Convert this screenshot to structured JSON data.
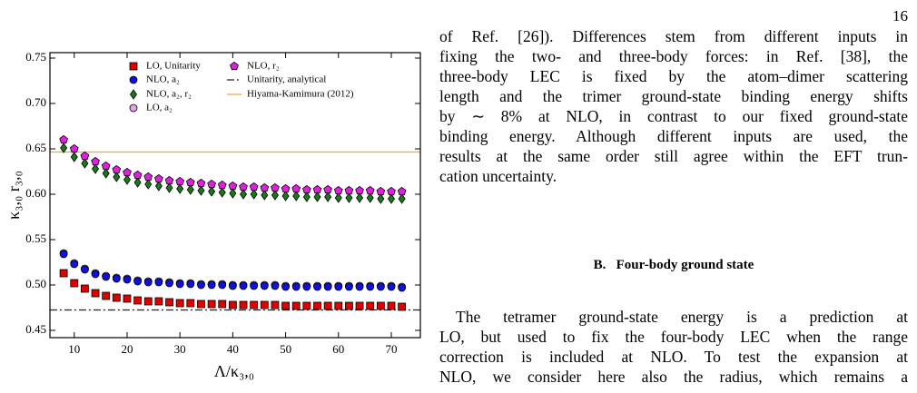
{
  "page_number": "16",
  "chart_data": {
    "type": "scatter",
    "xlabel": "Λ/κ₃,₀",
    "ylabel": "κ₃,₀ r₃,₀",
    "xlim": [
      5.4,
      75.5
    ],
    "ylim": [
      0.442,
      0.756
    ],
    "xticks": [
      10,
      20,
      30,
      40,
      50,
      60,
      70
    ],
    "yticks": [
      0.45,
      {
        "value": 0.5,
        "label": "0.50"
      },
      0.55,
      {
        "value": 0.6,
        "label": "0.60"
      },
      0.65,
      {
        "value": 0.7,
        "label": "0.70"
      },
      0.75
    ],
    "x": [
      8,
      10,
      12,
      14,
      16,
      18,
      20,
      22,
      24,
      26,
      28,
      30,
      32,
      34,
      36,
      38,
      40,
      42,
      44,
      46,
      48,
      50,
      52,
      54,
      56,
      58,
      60,
      62,
      64,
      66,
      68,
      70,
      72
    ],
    "series": [
      {
        "name": "LO, Unitarity",
        "color": "#e00000",
        "marker": "square",
        "values": [
          0.513,
          0.502,
          0.496,
          0.491,
          0.488,
          0.486,
          0.485,
          0.483,
          0.482,
          0.482,
          0.481,
          0.48,
          0.48,
          0.479,
          0.479,
          0.479,
          0.478,
          0.478,
          0.478,
          0.478,
          0.478,
          0.477,
          0.477,
          0.477,
          0.477,
          0.477,
          0.477,
          0.477,
          0.477,
          0.477,
          0.477,
          0.477,
          0.476
        ]
      },
      {
        "name": "NLO, a₂",
        "color": "#1010e0",
        "marker": "circle",
        "values": [
          0.534,
          0.523,
          0.517,
          0.512,
          0.509,
          0.507,
          0.506,
          0.504,
          0.503,
          0.503,
          0.502,
          0.501,
          0.501,
          0.5,
          0.5,
          0.5,
          0.499,
          0.499,
          0.499,
          0.499,
          0.499,
          0.498,
          0.498,
          0.498,
          0.498,
          0.498,
          0.498,
          0.498,
          0.498,
          0.498,
          0.498,
          0.498,
          0.497
        ]
      },
      {
        "name": "NLO, a₂, r₂",
        "color": "#1a7a1a",
        "marker": "diamond",
        "values": [
          0.651,
          0.641,
          0.634,
          0.628,
          0.623,
          0.619,
          0.616,
          0.613,
          0.611,
          0.609,
          0.607,
          0.606,
          0.605,
          0.604,
          0.603,
          0.602,
          0.601,
          0.6,
          0.6,
          0.599,
          0.599,
          0.598,
          0.598,
          0.597,
          0.597,
          0.597,
          0.596,
          0.596,
          0.596,
          0.596,
          0.595,
          0.595,
          0.595
        ]
      },
      {
        "name": "LO, a₂",
        "color": "#e8a0e8",
        "marker": "circle",
        "values": [
          0.535,
          0.524,
          0.518,
          0.513,
          0.51,
          0.508,
          0.507,
          0.505,
          0.504,
          0.504,
          0.503,
          0.502,
          0.502,
          0.501,
          0.501,
          0.501,
          0.5,
          0.5,
          0.5,
          0.5,
          0.5,
          0.499,
          0.499,
          0.499,
          0.499,
          0.499,
          0.499,
          0.499,
          0.499,
          0.499,
          0.499,
          0.499,
          0.498
        ]
      },
      {
        "name": "NLO, r₂",
        "color": "#e020e0",
        "marker": "pentagon",
        "values": [
          0.66,
          0.65,
          0.642,
          0.636,
          0.631,
          0.627,
          0.624,
          0.621,
          0.619,
          0.617,
          0.615,
          0.614,
          0.613,
          0.612,
          0.611,
          0.61,
          0.609,
          0.608,
          0.608,
          0.607,
          0.607,
          0.606,
          0.606,
          0.605,
          0.605,
          0.605,
          0.604,
          0.604,
          0.604,
          0.604,
          0.603,
          0.603,
          0.603
        ]
      },
      {
        "name": "Unitarity, analytical",
        "color": "#222222",
        "style": "dashdot",
        "value": 0.4725
      },
      {
        "name": "Hiyama-Kamimura (2012)",
        "color": "#f5a623",
        "style": "solid",
        "value": 0.6465
      }
    ]
  },
  "body": {
    "paragraph_1": [
      "of Ref. [26]). Differences stem from different inputs in",
      "fixing the two- and three-body forces: in Ref. [38], the",
      "three-body LEC is fixed by the atom–dimer scattering",
      "length and the trimer ground-state binding energy shifts",
      "by ∼ 8% at NLO, in contrast to our fixed ground-state",
      "binding energy. Although different inputs are used, the",
      "results at the same order still agree within the EFT trun-",
      "cation uncertainty."
    ],
    "heading": "B.   Four-body ground state",
    "paragraph_2": [
      "The tetramer ground-state energy is a prediction at",
      "LO, but used to fix the four-body LEC when the range",
      "correction is included at NLO. To test the expansion at",
      "NLO, we consider here also the radius, which remains a"
    ]
  }
}
